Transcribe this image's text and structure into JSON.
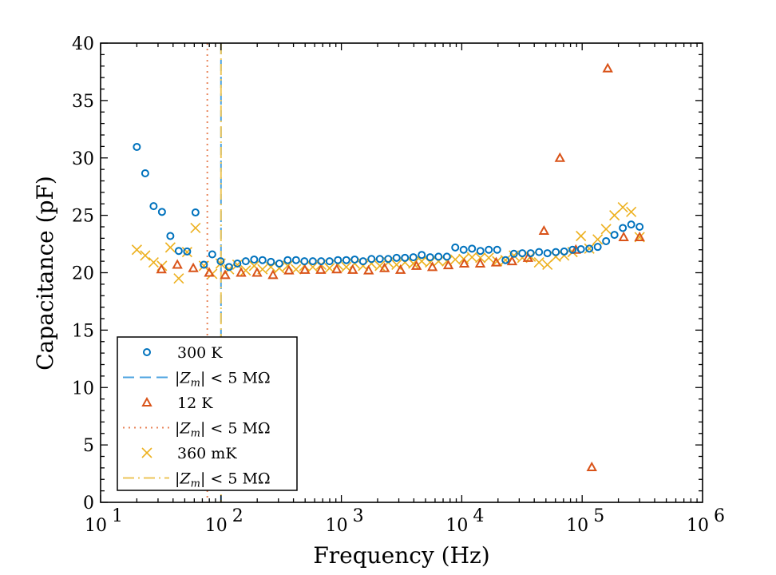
{
  "chart_data": {
    "type": "scatter",
    "title": "",
    "xlabel": "Frequency (Hz)",
    "ylabel": "Capacitance (pF)",
    "xscale": "log",
    "xlim": [
      10,
      1000000
    ],
    "ylim": [
      0,
      40
    ],
    "grid": false,
    "legend_position": "bottom-left",
    "x_tick_labels": [
      {
        "base": "10",
        "exp": "1",
        "value": 10
      },
      {
        "base": "10",
        "exp": "2",
        "value": 100
      },
      {
        "base": "10",
        "exp": "3",
        "value": 1000
      },
      {
        "base": "10",
        "exp": "4",
        "value": 10000
      },
      {
        "base": "10",
        "exp": "5",
        "value": 100000
      },
      {
        "base": "10",
        "exp": "6",
        "value": 1000000
      }
    ],
    "y_ticks": [
      "0",
      "5",
      "10",
      "15",
      "20",
      "25",
      "30",
      "35",
      "40"
    ],
    "series": [
      {
        "name": "300 K",
        "marker": "circle",
        "color": "#0072BD",
        "f_start": 20,
        "f_end": 300000,
        "values": [
          30.96,
          28.66,
          25.8,
          25.3,
          23.2,
          21.9,
          21.85,
          25.25,
          20.7,
          21.6,
          21.0,
          20.5,
          20.8,
          21.0,
          21.15,
          21.1,
          20.95,
          20.8,
          21.1,
          21.1,
          21.0,
          21.0,
          21.0,
          21.0,
          21.1,
          21.1,
          21.15,
          21.0,
          21.2,
          21.2,
          21.2,
          21.3,
          21.3,
          21.35,
          21.55,
          21.35,
          21.4,
          21.4,
          22.2,
          22.0,
          22.1,
          21.9,
          22.0,
          22.0,
          21.1,
          21.65,
          21.7,
          21.7,
          21.8,
          21.7,
          21.8,
          21.85,
          22.0,
          22.05,
          22.1,
          22.25,
          22.75,
          23.3,
          23.9,
          24.2,
          24.0
        ]
      },
      {
        "name": "12 K",
        "marker": "triangle",
        "color": "#D95319",
        "f_start": 32,
        "f_end": 300000,
        "values": [
          20.3,
          20.7,
          20.4,
          20.0,
          19.8,
          20.0,
          20.0,
          19.8,
          20.2,
          20.25,
          20.25,
          20.3,
          20.25,
          20.2,
          20.4,
          20.25,
          20.6,
          20.5,
          20.65,
          20.8,
          20.8,
          20.9,
          21.0,
          21.3,
          23.65,
          30.0,
          22.0,
          3.06,
          37.8,
          23.1,
          23.1
        ]
      },
      {
        "name": "360 mK",
        "marker": "cross",
        "color": "#EDB120",
        "f_start": 20,
        "f_end": 300000,
        "values": [
          22.0,
          21.5,
          20.9,
          20.6,
          22.2,
          19.5,
          21.8,
          23.9,
          20.6,
          19.9,
          20.8,
          20.3,
          20.7,
          20.2,
          20.6,
          20.3,
          20.5,
          20.4,
          20.6,
          20.3,
          20.6,
          20.5,
          20.7,
          20.4,
          20.7,
          20.5,
          20.8,
          20.6,
          20.8,
          20.6,
          20.9,
          20.7,
          20.9,
          20.8,
          21.0,
          20.9,
          21.0,
          21.0,
          21.15,
          21.2,
          21.35,
          21.3,
          21.3,
          21.0,
          21.1,
          21.5,
          21.3,
          21.4,
          20.9,
          20.7,
          21.4,
          21.5,
          21.8,
          23.2,
          22.1,
          22.9,
          23.8,
          25.0,
          25.7,
          25.3,
          23.1
        ]
      }
    ],
    "vertical_lines": [
      {
        "name": "|Z_m| < 5 MΩ (300 K)",
        "x": 100,
        "style": "dashed",
        "color": "#4DA3E0"
      },
      {
        "name": "|Z_m| < 5 MΩ (12 K)",
        "x": 77,
        "style": "dotted",
        "color": "#E8845A"
      },
      {
        "name": "|Z_m| < 5 MΩ (360 mK)",
        "x": 100,
        "style": "dashdot",
        "color": "#EDC65A"
      }
    ],
    "legend": [
      {
        "label": "300 K",
        "kind": "marker",
        "marker": "circle",
        "color": "#0072BD"
      },
      {
        "label_prefix": "|Z",
        "label_sub": "m",
        "label_suffix": "| < 5 MΩ",
        "kind": "line",
        "style": "dashed",
        "color": "#4DA3E0"
      },
      {
        "label": "12 K",
        "kind": "marker",
        "marker": "triangle",
        "color": "#D95319"
      },
      {
        "label_prefix": "|Z",
        "label_sub": "m",
        "label_suffix": "| < 5 MΩ",
        "kind": "line",
        "style": "dotted",
        "color": "#E8845A"
      },
      {
        "label": "360 mK",
        "kind": "marker",
        "marker": "cross",
        "color": "#EDB120"
      },
      {
        "label_prefix": "|Z",
        "label_sub": "m",
        "label_suffix": "| < 5 MΩ",
        "kind": "line",
        "style": "dashdot",
        "color": "#EDC65A"
      }
    ]
  }
}
